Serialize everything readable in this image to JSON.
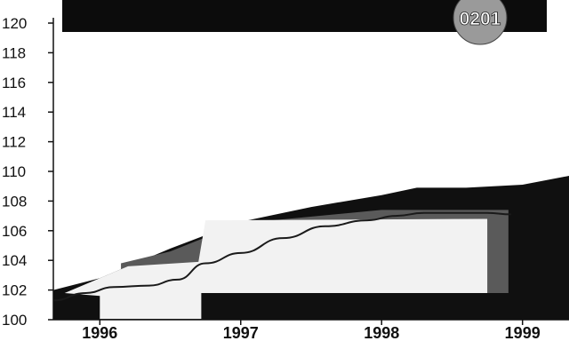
{
  "badge": {
    "text": "0201"
  },
  "colors": {
    "band_dark": "#101010",
    "band_mid": "#5a5a5a",
    "band_light": "#f2f2f2",
    "line": "#1a1a1a",
    "badge_fill": "#9a9a9a"
  },
  "chart_data": {
    "type": "line",
    "title": "",
    "xlabel": "",
    "ylabel": "",
    "ylim": [
      100,
      120
    ],
    "yticks": [
      "100",
      "102",
      "104",
      "106",
      "108",
      "110",
      "112",
      "114",
      "116",
      "118",
      "120"
    ],
    "xticks": [
      "1996",
      "1997",
      "1998",
      "1999"
    ],
    "xlim": [
      1995.67,
      1999.33
    ],
    "grid": false,
    "legend": "none",
    "series": [
      {
        "x": [
          1995.67,
          1995.9,
          1996.1,
          1996.35,
          1996.55,
          1996.75,
          1997.0,
          1997.3,
          1997.6,
          1997.9,
          1998.1,
          1998.3,
          1998.5,
          1998.75,
          1998.92
        ],
        "values": [
          101.3,
          101.8,
          102.2,
          102.3,
          102.7,
          103.8,
          104.5,
          105.5,
          106.3,
          106.7,
          107.0,
          107.2,
          107.2,
          107.2,
          107.1
        ]
      }
    ],
    "band_upper": {
      "x": [
        1995.67,
        1996.0,
        1996.5,
        1997.0,
        1997.5,
        1998.0,
        1998.25,
        1998.6,
        1999.0,
        1999.33
      ],
      "values": [
        102.0,
        102.8,
        104.8,
        106.6,
        107.6,
        108.4,
        108.9,
        108.9,
        109.1,
        109.7
      ]
    }
  }
}
